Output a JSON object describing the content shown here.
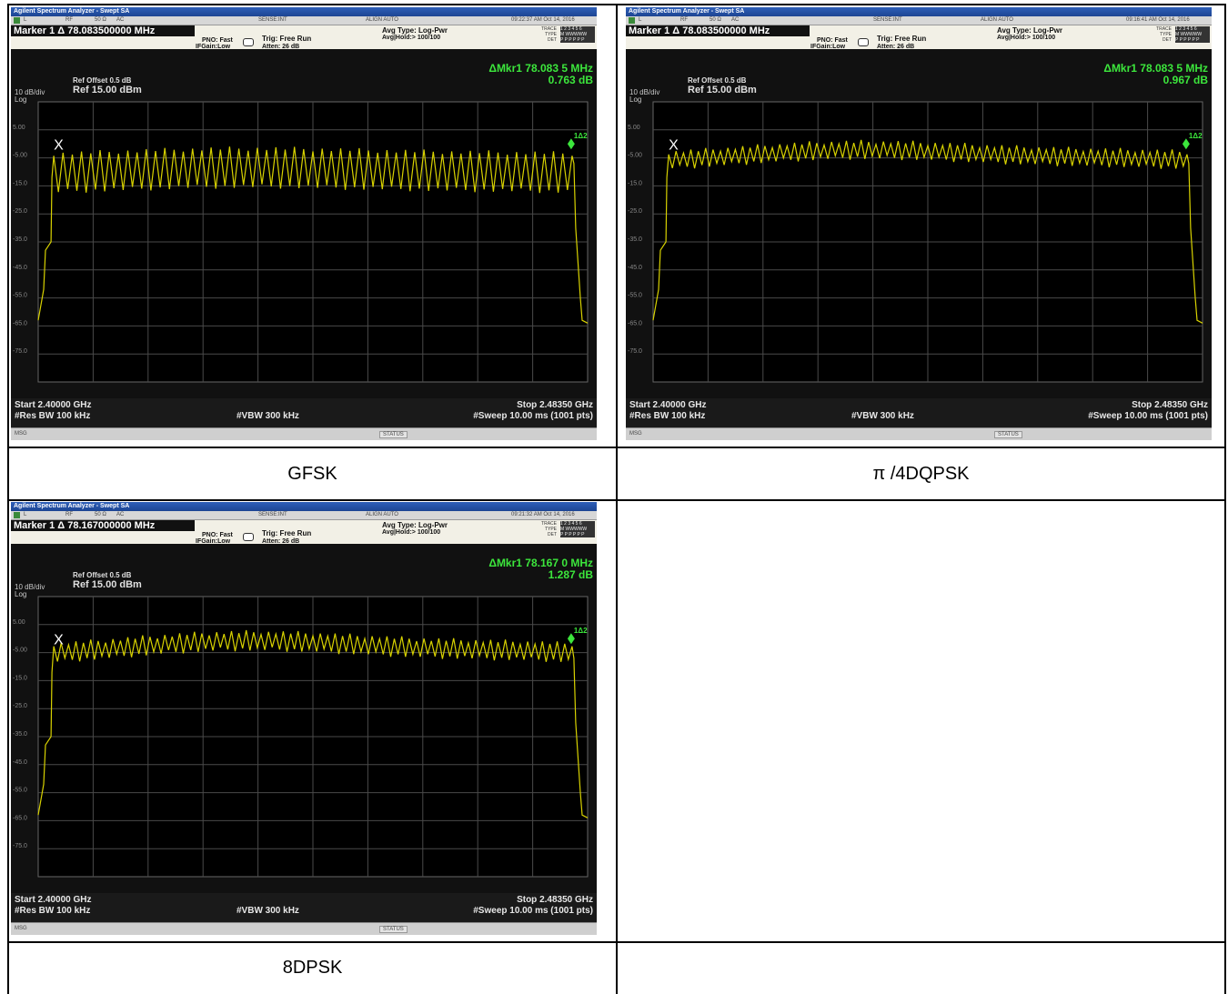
{
  "captions": {
    "top_left": "GFSK",
    "top_right": "π /4DQPSK",
    "bottom_left": "8DPSK",
    "bottom_right": ""
  },
  "analyzers": [
    {
      "window_title": "Agilent Spectrum Analyzer - Swept SA",
      "strip": {
        "l": "L",
        "rf": "RF",
        "imp": "50 Ω",
        "ac": "AC",
        "sense": "SENSE:INT",
        "align": "ALIGN AUTO",
        "time": "09:22:37 AM Oct 14, 2016"
      },
      "marker_label": "Marker 1 Δ 78.083500000 MHz",
      "pno": "PNO: Fast",
      "ifgain": "IFGain:Low",
      "trig": "Trig: Free Run",
      "atten": "Atten: 26 dB",
      "avg_type": "Avg Type: Log-Pwr",
      "avg_hold": "Avg|Hold:> 100/100",
      "trace": {
        "trace": "TRACE",
        "type": "TYPE",
        "det": "DET",
        "nums": "1 2 3 4 5 6",
        "types": "M WWWWW",
        "dets": "P P P P P P"
      },
      "ref_offset": "Ref Offset 0.5 dB",
      "ref_level": "Ref 15.00 dBm",
      "scale": "10 dB/div",
      "log": "Log",
      "delta_marker": "ΔMkr1 78.083 5 MHz",
      "delta_value": "0.763 dB",
      "marker_x": "X",
      "marker_tag": "1Δ2",
      "y_ticks": [
        "5.00",
        "-5.00",
        "-15.0",
        "-25.0",
        "-35.0",
        "-45.0",
        "-55.0",
        "-65.0",
        "-75.0"
      ],
      "start": "Start 2.40000 GHz",
      "stop": "Stop 2.48350 GHz",
      "res_bw": "#Res BW 100 kHz",
      "vbw": "#VBW 300 kHz",
      "sweep": "#Sweep  10.00 ms (1001 pts)",
      "msg": "MSG",
      "status": "STATUS",
      "trace_style": {
        "ripple_count": 56,
        "top_dbm": -3.5,
        "bottom_dbm": -17.0,
        "hump": 1.5
      }
    },
    {
      "window_title": "Agilent Spectrum Analyzer - Swept SA",
      "strip": {
        "l": "L",
        "rf": "RF",
        "imp": "50 Ω",
        "ac": "AC",
        "sense": "SENSE:INT",
        "align": "ALIGN AUTO",
        "time": "09:16:41 AM Oct 14, 2016"
      },
      "marker_label": "Marker 1 Δ 78.083500000 MHz",
      "pno": "PNO: Fast",
      "ifgain": "IFGain:Low",
      "trig": "Trig: Free Run",
      "atten": "Atten: 26 dB",
      "avg_type": "Avg Type: Log-Pwr",
      "avg_hold": "Avg|Hold:> 100/100",
      "trace": {
        "trace": "TRACE",
        "type": "TYPE",
        "det": "DET",
        "nums": "1 2 3 4 5 6",
        "types": "M WWWWW",
        "dets": "P P P P P P"
      },
      "ref_offset": "Ref Offset 0.5 dB",
      "ref_level": "Ref 15.00 dBm",
      "scale": "10 dB/div",
      "log": "Log",
      "delta_marker": "ΔMkr1 78.083 5 MHz",
      "delta_value": "0.967 dB",
      "marker_x": "X",
      "marker_tag": "1Δ2",
      "y_ticks": [
        "5.00",
        "-5.00",
        "-15.0",
        "-25.0",
        "-35.0",
        "-45.0",
        "-55.0",
        "-65.0",
        "-75.0"
      ],
      "start": "Start 2.40000 GHz",
      "stop": "Stop 2.48350 GHz",
      "res_bw": "#Res BW 100 kHz",
      "vbw": "#VBW 300 kHz",
      "sweep": "#Sweep  10.00 ms (1001 pts)",
      "msg": "MSG",
      "status": "STATUS",
      "trace_style": {
        "ripple_count": 70,
        "top_dbm": -3.0,
        "bottom_dbm": -8.5,
        "hump": 3.0
      }
    },
    {
      "window_title": "Agilent Spectrum Analyzer - Swept SA",
      "strip": {
        "l": "L",
        "rf": "RF",
        "imp": "50 Ω",
        "ac": "AC",
        "sense": "SENSE:INT",
        "align": "ALIGN AUTO",
        "time": "09:21:32 AM Oct 14, 2016"
      },
      "marker_label": "Marker 1 Δ 78.167000000 MHz",
      "pno": "PNO: Fast",
      "ifgain": "IFGain:Low",
      "trig": "Trig: Free Run",
      "atten": "Atten: 26 dB",
      "avg_type": "Avg Type: Log-Pwr",
      "avg_hold": "Avg|Hold:> 100/100",
      "trace": {
        "trace": "TRACE",
        "type": "TYPE",
        "det": "DET",
        "nums": "1 2 3 4 5 6",
        "types": "M WWWWW",
        "dets": "P P P P P P"
      },
      "ref_offset": "Ref Offset 0.5 dB",
      "ref_level": "Ref 15.00 dBm",
      "scale": "10 dB/div",
      "log": "Log",
      "delta_marker": "ΔMkr1 78.167 0 MHz",
      "delta_value": "1.287 dB",
      "marker_x": "X",
      "marker_tag": "1Δ2",
      "y_ticks": [
        "5.00",
        "-5.00",
        "-15.0",
        "-25.0",
        "-35.0",
        "-45.0",
        "-55.0",
        "-65.0",
        "-75.0"
      ],
      "start": "Start 2.40000 GHz",
      "stop": "Stop 2.48350 GHz",
      "res_bw": "#Res BW 100 kHz",
      "vbw": "#VBW 300 kHz",
      "sweep": "#Sweep  10.00 ms (1001 pts)",
      "msg": "MSG",
      "status": "STATUS",
      "trace_style": {
        "ripple_count": 70,
        "top_dbm": -2.0,
        "bottom_dbm": -8.0,
        "hump": 3.5
      }
    }
  ],
  "colors": {
    "trace": "#d8d200",
    "delta_text": "#3ce63c",
    "marker": "#3ce63c",
    "grid": "#4a4a4a"
  }
}
